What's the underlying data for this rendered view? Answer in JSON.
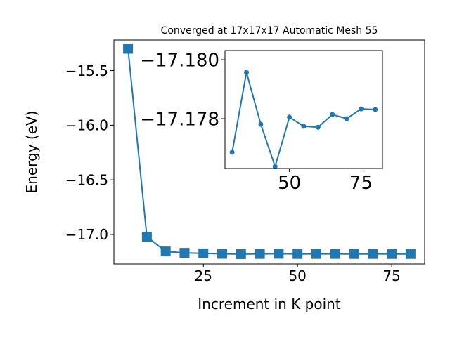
{
  "chart_data": [
    {
      "type": "line",
      "title": "Converged at 17x17x17 Automatic Mesh 55",
      "x_label": "Increment in K point",
      "y_label": "Energy (eV)",
      "x": [
        5,
        10,
        15,
        20,
        25,
        30,
        35,
        40,
        45,
        50,
        55,
        60,
        65,
        70,
        75,
        80
      ],
      "series": [
        {
          "color": "#1f77b4",
          "marker": "square",
          "values": [
            -15.3,
            -17.02,
            -17.155,
            -17.168,
            -17.173,
            -17.17686,
            -17.17957,
            -17.17781,
            -17.17638,
            -17.17805,
            -17.17774,
            -17.17771,
            -17.17814,
            -17.178,
            -17.17833,
            -17.17831
          ]
        }
      ],
      "xlim": [
        1.25,
        83.75
      ],
      "ylim": [
        -17.27,
        -15.22
      ],
      "xticks": [
        25,
        50,
        75
      ],
      "yticks": [
        {
          "value": -15.5,
          "label": "−15.5"
        },
        {
          "value": -16.0,
          "label": "−16.0"
        },
        {
          "value": -16.5,
          "label": "−16.5"
        },
        {
          "value": -17.0,
          "label": "−17.0"
        }
      ]
    },
    {
      "type": "line",
      "x": [
        30,
        35,
        40,
        45,
        50,
        55,
        60,
        65,
        70,
        75,
        80
      ],
      "series": [
        {
          "color": "#1f77b4",
          "marker": "circle",
          "values": [
            -17.17686,
            -17.17957,
            -17.17781,
            -17.17638,
            -17.17805,
            -17.17774,
            -17.17771,
            -17.17814,
            -17.178,
            -17.17833,
            -17.17831
          ]
        }
      ],
      "xlim": [
        27.5,
        82.5
      ],
      "ylim": [
        -17.17631,
        -17.18031
      ],
      "xticks": [
        50,
        75
      ],
      "yticks": [
        {
          "value": -17.18,
          "label": "−17.180"
        },
        {
          "value": -17.178,
          "label": "−17.178"
        }
      ]
    }
  ]
}
